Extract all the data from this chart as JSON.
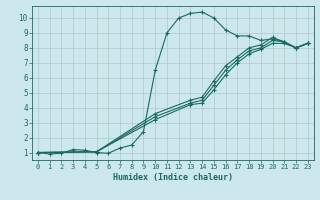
{
  "bg_color": "#cce8ec",
  "grid_color": "#b0c8cc",
  "line_color": "#1a6b5e",
  "marker": "+",
  "xlabel": "Humidex (Indice chaleur)",
  "xlim": [
    -0.5,
    23.5
  ],
  "ylim": [
    0.5,
    10.8
  ],
  "xticks": [
    0,
    1,
    2,
    3,
    4,
    5,
    6,
    7,
    8,
    9,
    10,
    11,
    12,
    13,
    14,
    15,
    16,
    17,
    18,
    19,
    20,
    21,
    22,
    23
  ],
  "yticks": [
    1,
    2,
    3,
    4,
    5,
    6,
    7,
    8,
    9,
    10
  ],
  "lines": [
    {
      "x": [
        0,
        1,
        2,
        3,
        4,
        5,
        6,
        7,
        8,
        9,
        10,
        11,
        12,
        13,
        14,
        15,
        16,
        17,
        18,
        19,
        20,
        21,
        22,
        23
      ],
      "y": [
        1.0,
        0.9,
        0.95,
        1.2,
        1.15,
        1.0,
        0.95,
        1.3,
        1.5,
        2.4,
        6.5,
        9.0,
        10.0,
        10.3,
        10.4,
        10.0,
        9.2,
        8.8,
        8.8,
        8.5,
        8.6,
        8.4,
        8.0,
        8.3
      ]
    },
    {
      "x": [
        0,
        23
      ],
      "y": [
        1.0,
        8.3
      ],
      "markers_x": [
        0,
        5,
        10,
        13,
        14,
        15,
        16,
        17,
        18,
        19,
        20,
        21,
        22,
        23
      ],
      "markers_y": [
        1.0,
        1.05,
        3.2,
        4.2,
        4.3,
        5.2,
        6.2,
        7.0,
        7.6,
        7.9,
        8.3,
        8.3,
        8.0,
        8.3
      ]
    },
    {
      "x": [
        0,
        23
      ],
      "y": [
        1.0,
        8.3
      ],
      "markers_x": [
        0,
        5,
        10,
        13,
        14,
        15,
        16,
        17,
        18,
        19,
        20,
        21,
        22,
        23
      ],
      "markers_y": [
        1.0,
        1.05,
        3.4,
        4.3,
        4.5,
        5.5,
        6.5,
        7.2,
        7.8,
        8.0,
        8.5,
        8.4,
        8.0,
        8.3
      ]
    },
    {
      "x": [
        0,
        23
      ],
      "y": [
        1.0,
        8.3
      ],
      "markers_x": [
        0,
        5,
        10,
        13,
        14,
        15,
        16,
        17,
        18,
        19,
        20,
        21,
        22,
        23
      ],
      "markers_y": [
        1.0,
        1.05,
        3.6,
        4.5,
        4.7,
        5.8,
        6.8,
        7.4,
        8.0,
        8.2,
        8.7,
        8.4,
        8.0,
        8.3
      ]
    }
  ]
}
